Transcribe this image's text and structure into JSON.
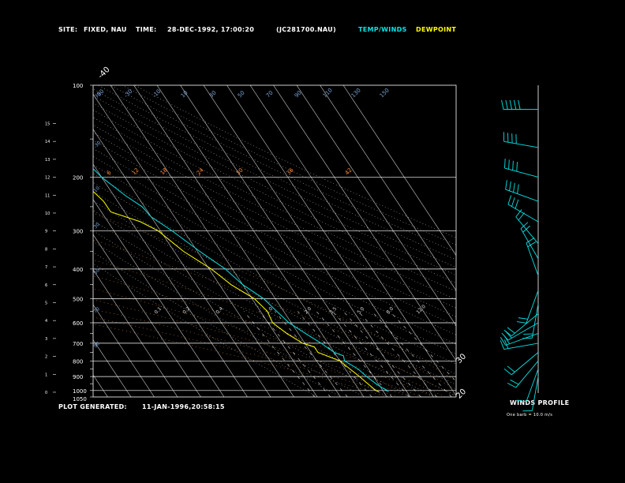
{
  "header": {
    "site_label": "SITE:",
    "site_value": "FIXED, NAU",
    "time_label": "TIME:",
    "time_value": "28-DEC-1992, 17:00:20",
    "file_name": "(JC281700.NAU)",
    "legend_temp": "TEMP/WINDS",
    "legend_dewpoint": "DEWPOINT"
  },
  "footer": {
    "generated_label": "PLOT GENERATED:",
    "generated_value": "11-JAN-1996,20:58:15"
  },
  "wind_panel": {
    "title": "WINDS PROFILE",
    "note": "One barb = 10.0 m/s"
  },
  "colors": {
    "temp": "#00e5e5",
    "dewpoint": "#ffff00",
    "axes": "#ffffff",
    "isotherm": "#cccccc",
    "mixing_ratio": "#ff8c3c",
    "dry_adiabat": "#aaaaaa",
    "moist_adiabat": "#ff9a3c",
    "barb": "#00e5e5"
  },
  "chart_data": {
    "type": "line",
    "subtype": "skew-t",
    "pressure_levels": [
      100,
      200,
      300,
      400,
      500,
      600,
      700,
      800,
      900,
      1000,
      1050
    ],
    "height_km_ticks": [
      0,
      1,
      2,
      3,
      4,
      5,
      6,
      7,
      8,
      9,
      10,
      11,
      12,
      13,
      14,
      15
    ],
    "isotherm_top_labels": [
      -110,
      -100,
      -90,
      -80,
      -70,
      -60,
      -50,
      -40
    ],
    "isotherm_right_labels": [
      -30,
      -20,
      -10,
      0,
      10,
      20,
      30
    ],
    "theta_labels": [
      "-50",
      "-30",
      "-10",
      "10",
      "30",
      "50",
      "70",
      "90",
      "110",
      "130",
      "150"
    ],
    "mixing_ratio_labels": [
      "0.1",
      "0.2",
      "0.4",
      "1.0",
      "2.0",
      "3.5",
      "5.0",
      "8.0",
      "12.0"
    ],
    "moist_labels": [
      "6",
      "12",
      "18",
      "24",
      "30",
      "36",
      "42"
    ],
    "left_small_labels": [
      "-70",
      "-30",
      "10",
      "30",
      "50",
      "70",
      "90"
    ],
    "series": [
      {
        "name": "TEMP/WINDS",
        "points": [
          [
            1010,
            -8
          ],
          [
            1000,
            -8
          ],
          [
            980,
            -9.5
          ],
          [
            950,
            -11
          ],
          [
            900,
            -13
          ],
          [
            850,
            -14.5
          ],
          [
            800,
            -18
          ],
          [
            770,
            -17
          ],
          [
            750,
            -20
          ],
          [
            700,
            -23
          ],
          [
            650,
            -27
          ],
          [
            600,
            -31
          ],
          [
            550,
            -33
          ],
          [
            500,
            -35
          ],
          [
            450,
            -40
          ],
          [
            400,
            -43
          ],
          [
            350,
            -49
          ],
          [
            300,
            -55
          ],
          [
            270,
            -60
          ],
          [
            250,
            -61
          ],
          [
            230,
            -65
          ],
          [
            200,
            -70
          ],
          [
            180,
            -72
          ],
          [
            160,
            -74
          ],
          [
            140,
            -75
          ],
          [
            120,
            -75
          ],
          [
            100,
            -75
          ]
        ]
      },
      {
        "name": "DEWPOINT",
        "points": [
          [
            1010,
            -12
          ],
          [
            1000,
            -13
          ],
          [
            950,
            -14.5
          ],
          [
            900,
            -16
          ],
          [
            850,
            -18
          ],
          [
            800,
            -20
          ],
          [
            750,
            -27
          ],
          [
            720,
            -27
          ],
          [
            700,
            -31
          ],
          [
            650,
            -35
          ],
          [
            600,
            -38
          ],
          [
            550,
            -37
          ],
          [
            500,
            -39
          ],
          [
            450,
            -45
          ],
          [
            400,
            -49
          ],
          [
            350,
            -56
          ],
          [
            300,
            -61
          ],
          [
            280,
            -66
          ],
          [
            260,
            -76
          ],
          [
            240,
            -76
          ],
          [
            200,
            -80
          ],
          [
            170,
            -84
          ],
          [
            140,
            -87
          ],
          [
            120,
            -89
          ],
          [
            100,
            -89
          ]
        ]
      }
    ],
    "wind_barbs": [
      {
        "p": 120,
        "dir": 270,
        "barbs": 5
      },
      {
        "p": 160,
        "dir": 280,
        "barbs": 4
      },
      {
        "p": 200,
        "dir": 285,
        "barbs": 4
      },
      {
        "p": 240,
        "dir": 290,
        "barbs": 4
      },
      {
        "p": 280,
        "dir": 300,
        "barbs": 3
      },
      {
        "p": 330,
        "dir": 320,
        "barbs": 2
      },
      {
        "p": 370,
        "dir": 330,
        "barbs": 2
      },
      {
        "p": 420,
        "dir": 340,
        "barbs": 2
      },
      {
        "p": 470,
        "dir": 200,
        "barbs": 2
      },
      {
        "p": 520,
        "dir": 190,
        "barbs": 2
      },
      {
        "p": 560,
        "dir": 230,
        "barbs": 2
      },
      {
        "p": 600,
        "dir": 240,
        "barbs": 2
      },
      {
        "p": 650,
        "dir": 250,
        "barbs": 2
      },
      {
        "p": 700,
        "dir": 260,
        "barbs": 2
      },
      {
        "p": 750,
        "dir": 230,
        "barbs": 2
      },
      {
        "p": 800,
        "dir": 220,
        "barbs": 2
      },
      {
        "p": 850,
        "dir": 200,
        "barbs": 1
      },
      {
        "p": 900,
        "dir": 190,
        "barbs": 1
      }
    ]
  }
}
